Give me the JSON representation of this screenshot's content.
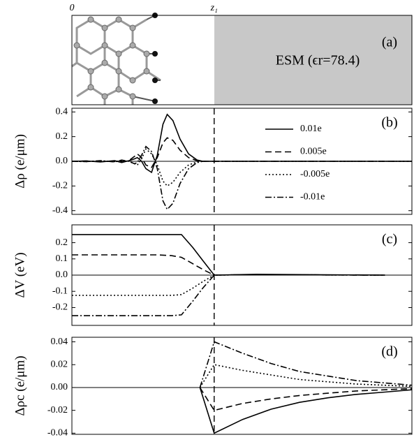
{
  "panel_a": {
    "label": "(a)",
    "text": "ESM  (ϵr=78.4)",
    "xlim": [
      0,
      2.39
    ],
    "xticks": [
      {
        "value": 0,
        "label": "0"
      },
      {
        "value": 1,
        "label": "z₁"
      }
    ]
  },
  "chart_data": [
    {
      "type": "line",
      "label": "(b)",
      "ylabel": "Δρ (e/μm)",
      "xlim": [
        0,
        2.39
      ],
      "ylim": [
        -0.43,
        0.43
      ],
      "yticks": [
        0.4,
        0.2,
        {
          "value": 0,
          "label": "0.0"
        },
        -0.2,
        -0.4
      ],
      "legend": "upper right",
      "x": [
        0,
        0.1,
        0.2,
        0.3,
        0.35,
        0.4,
        0.44,
        0.46,
        0.49,
        0.52,
        0.56,
        0.6,
        0.64,
        0.67,
        0.71,
        0.76,
        0.82,
        0.88,
        0.92,
        1.0,
        1.5,
        2.39
      ],
      "series": [
        {
          "name": "0.01e",
          "color": "#000",
          "dash": "solid",
          "values": [
            0,
            0.003,
            -0.005,
            0.005,
            -0.01,
            0.005,
            0.02,
            0.03,
            0.0,
            -0.06,
            -0.09,
            0.05,
            0.3,
            0.38,
            0.33,
            0.18,
            0.06,
            0.01,
            0,
            0,
            0,
            0
          ]
        },
        {
          "name": "0.005e",
          "color": "#000",
          "dash": "dash",
          "values": [
            0,
            0.002,
            -0.003,
            0.003,
            -0.005,
            0.005,
            0.04,
            0.06,
            0.03,
            -0.03,
            -0.05,
            0.03,
            0.15,
            0.19,
            0.17,
            0.09,
            0.03,
            0.005,
            0,
            0,
            0,
            0
          ]
        },
        {
          "name": "-0.005e",
          "color": "#000",
          "dash": "dot",
          "values": [
            0,
            -0.002,
            0.003,
            -0.003,
            0.005,
            0.0,
            -0.02,
            -0.03,
            0.02,
            0.1,
            0.06,
            -0.03,
            -0.16,
            -0.2,
            -0.17,
            -0.09,
            -0.03,
            -0.005,
            0,
            0,
            0,
            0
          ]
        },
        {
          "name": "-0.01e",
          "color": "#000",
          "dash": "dashdot",
          "values": [
            0,
            -0.003,
            0.005,
            -0.005,
            0.01,
            0,
            -0.02,
            -0.01,
            0.05,
            0.12,
            0.08,
            -0.06,
            -0.32,
            -0.39,
            -0.34,
            -0.18,
            -0.06,
            -0.01,
            0,
            0,
            0,
            0
          ]
        }
      ]
    },
    {
      "type": "line",
      "label": "(c)",
      "ylabel": "ΔV (eV)",
      "xlim": [
        0,
        2.39
      ],
      "ylim": [
        -0.31,
        0.31
      ],
      "yticks": [
        0.2,
        0.1,
        {
          "value": 0,
          "label": "0.0"
        },
        -0.1,
        -0.2
      ],
      "x": [
        0,
        0.6,
        0.7,
        0.77,
        0.85,
        0.92,
        1.0,
        1.3,
        1.8,
        2.2
      ],
      "series": [
        {
          "color": "#000",
          "dash": "solid",
          "values": [
            0.25,
            0.25,
            0.25,
            0.25,
            0.17,
            0.09,
            0,
            0.005,
            0.002,
            0
          ]
        },
        {
          "color": "#000",
          "dash": "dash",
          "values": [
            0.125,
            0.125,
            0.12,
            0.11,
            0.07,
            0.035,
            0,
            0.003,
            0.001,
            0
          ]
        },
        {
          "color": "#000",
          "dash": "dot",
          "values": [
            -0.125,
            -0.125,
            -0.125,
            -0.12,
            -0.08,
            -0.04,
            0,
            0.003,
            0.001,
            0
          ]
        },
        {
          "color": "#000",
          "dash": "dashdot",
          "values": [
            -0.25,
            -0.25,
            -0.25,
            -0.245,
            -0.16,
            -0.08,
            0,
            0.003,
            0.001,
            0
          ]
        }
      ]
    },
    {
      "type": "line",
      "label": "(d)",
      "ylabel": "Δρc (e/μm)",
      "xlim": [
        0,
        2.39
      ],
      "ylim": [
        -0.041,
        0.044
      ],
      "yticks": [
        0.04,
        0.02,
        {
          "value": 0,
          "label": "0.00"
        },
        -0.02,
        -0.04
      ],
      "x": [
        0.9,
        1.0,
        1.2,
        1.4,
        1.6,
        1.8,
        2.0,
        2.2,
        2.39
      ],
      "series": [
        {
          "color": "#000",
          "dash": "solid",
          "values": [
            0,
            -0.04,
            -0.028,
            -0.019,
            -0.013,
            -0.009,
            -0.006,
            -0.004,
            -0.002
          ]
        },
        {
          "color": "#000",
          "dash": "dash",
          "values": [
            0,
            -0.02,
            -0.014,
            -0.01,
            -0.007,
            -0.005,
            -0.003,
            -0.002,
            -0.001
          ]
        },
        {
          "color": "#000",
          "dash": "dot",
          "values": [
            0,
            0.02,
            0.015,
            0.011,
            0.007,
            0.005,
            0.003,
            0.002,
            0.001
          ]
        },
        {
          "color": "#000",
          "dash": "dashdot",
          "values": [
            0,
            0.04,
            0.03,
            0.021,
            0.014,
            0.01,
            0.006,
            0.004,
            0.002
          ]
        }
      ]
    }
  ]
}
